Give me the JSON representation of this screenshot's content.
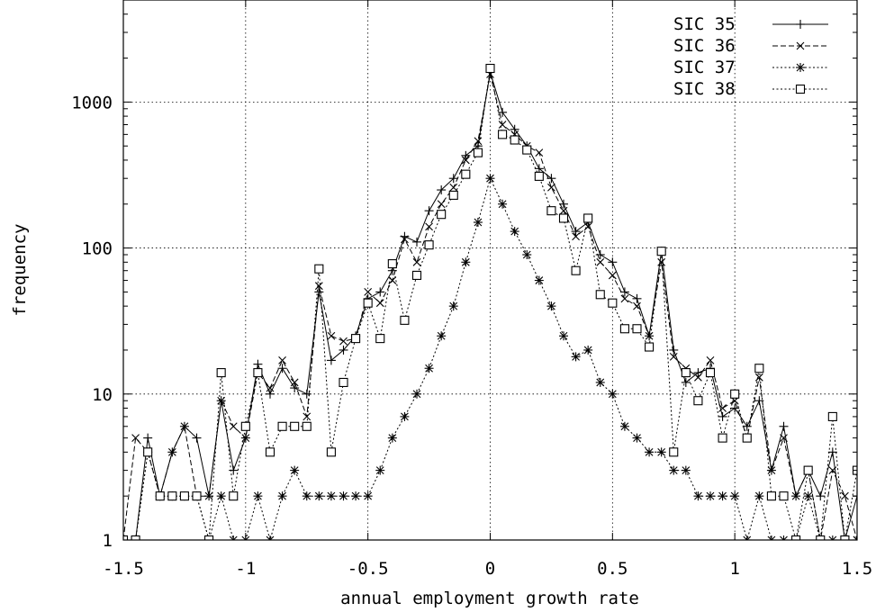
{
  "chart_data": {
    "type": "line",
    "xlabel": "annual employment growth rate",
    "ylabel": "frequency",
    "xlim": [
      -1.5,
      1.5
    ],
    "ylim": [
      1,
      5000
    ],
    "yscale": "log",
    "grid": true,
    "legend_position": "top-right",
    "xticks": [
      "-1.5",
      "-1",
      "-0.5",
      "0",
      "0.5",
      "1",
      "1.5"
    ],
    "yticks": [
      "1",
      "10",
      "100",
      "1000"
    ],
    "series": [
      {
        "name": "SIC 35",
        "color": "#000000",
        "line": "solid",
        "marker": "plus",
        "x": [
          -1.5,
          -1.45,
          -1.4,
          -1.35,
          -1.3,
          -1.25,
          -1.2,
          -1.15,
          -1.1,
          -1.05,
          -1.0,
          -0.95,
          -0.9,
          -0.85,
          -0.8,
          -0.75,
          -0.7,
          -0.65,
          -0.6,
          -0.55,
          -0.5,
          -0.45,
          -0.4,
          -0.35,
          -0.3,
          -0.25,
          -0.2,
          -0.15,
          -0.1,
          -0.05,
          0.0,
          0.05,
          0.1,
          0.15,
          0.2,
          0.25,
          0.3,
          0.35,
          0.4,
          0.45,
          0.5,
          0.55,
          0.6,
          0.65,
          0.7,
          0.75,
          0.8,
          0.85,
          0.9,
          0.95,
          1.0,
          1.05,
          1.1,
          1.15,
          1.2,
          1.25,
          1.3,
          1.35,
          1.4,
          1.45,
          1.5
        ],
        "values": [
          1,
          1,
          5,
          2,
          4,
          6,
          5,
          2,
          9,
          3,
          5,
          16,
          10,
          15,
          11,
          10,
          50,
          17,
          20,
          25,
          45,
          50,
          70,
          120,
          110,
          180,
          250,
          300,
          430,
          500,
          1600,
          850,
          650,
          500,
          350,
          300,
          200,
          130,
          150,
          90,
          80,
          50,
          45,
          25,
          95,
          20,
          12,
          14,
          15,
          7,
          8,
          6,
          9,
          3,
          6,
          2,
          3,
          2,
          4,
          1,
          2
        ]
      },
      {
        "name": "SIC 36",
        "color": "#000000",
        "line": "dashed",
        "marker": "cross",
        "x": [
          -1.5,
          -1.45,
          -1.4,
          -1.35,
          -1.3,
          -1.25,
          -1.2,
          -1.15,
          -1.1,
          -1.05,
          -1.0,
          -0.95,
          -0.9,
          -0.85,
          -0.8,
          -0.75,
          -0.7,
          -0.65,
          -0.6,
          -0.55,
          -0.5,
          -0.45,
          -0.4,
          -0.35,
          -0.3,
          -0.25,
          -0.2,
          -0.15,
          -0.1,
          -0.05,
          0.0,
          0.05,
          0.1,
          0.15,
          0.2,
          0.25,
          0.3,
          0.35,
          0.4,
          0.45,
          0.5,
          0.55,
          0.6,
          0.65,
          0.7,
          0.75,
          0.8,
          0.85,
          0.9,
          0.95,
          1.0,
          1.05,
          1.1,
          1.15,
          1.2,
          1.25,
          1.3,
          1.35,
          1.4,
          1.45,
          1.5
        ],
        "values": [
          1,
          5,
          4,
          2,
          4,
          6,
          2,
          2,
          9,
          6,
          5,
          14,
          11,
          17,
          12,
          7,
          55,
          25,
          23,
          24,
          50,
          42,
          60,
          115,
          80,
          140,
          200,
          260,
          400,
          540,
          1550,
          700,
          600,
          500,
          450,
          260,
          180,
          120,
          140,
          80,
          65,
          45,
          40,
          25,
          80,
          18,
          15,
          13,
          17,
          8,
          9,
          5,
          13,
          3,
          5,
          2,
          3,
          1,
          3,
          2,
          1
        ]
      },
      {
        "name": "SIC 37",
        "color": "#000000",
        "line": "dotted",
        "marker": "star",
        "x": [
          -1.5,
          -1.45,
          -1.4,
          -1.35,
          -1.3,
          -1.25,
          -1.2,
          -1.15,
          -1.1,
          -1.05,
          -1.0,
          -0.95,
          -0.9,
          -0.85,
          -0.8,
          -0.75,
          -0.7,
          -0.65,
          -0.6,
          -0.55,
          -0.5,
          -0.45,
          -0.4,
          -0.35,
          -0.3,
          -0.25,
          -0.2,
          -0.15,
          -0.1,
          -0.05,
          0.0,
          0.05,
          0.1,
          0.15,
          0.2,
          0.25,
          0.3,
          0.35,
          0.4,
          0.45,
          0.5,
          0.55,
          0.6,
          0.65,
          0.7,
          0.75,
          0.8,
          0.85,
          0.9,
          0.95,
          1.0,
          1.05,
          1.1,
          1.15,
          1.2,
          1.25,
          1.3,
          1.35,
          1.4,
          1.45,
          1.5
        ],
        "values": [
          1,
          1,
          4,
          2,
          2,
          2,
          2,
          1,
          2,
          1,
          1,
          2,
          1,
          2,
          3,
          2,
          2,
          2,
          2,
          2,
          2,
          3,
          5,
          7,
          10,
          15,
          25,
          40,
          80,
          150,
          300,
          200,
          130,
          90,
          60,
          40,
          25,
          18,
          20,
          12,
          10,
          6,
          5,
          4,
          4,
          3,
          3,
          2,
          2,
          2,
          2,
          1,
          2,
          1,
          1,
          1,
          2,
          1,
          1,
          1,
          1
        ]
      },
      {
        "name": "SIC 38",
        "color": "#000000",
        "line": "dotted",
        "marker": "square",
        "x": [
          -1.5,
          -1.45,
          -1.4,
          -1.35,
          -1.3,
          -1.25,
          -1.2,
          -1.15,
          -1.1,
          -1.05,
          -1.0,
          -0.95,
          -0.9,
          -0.85,
          -0.8,
          -0.75,
          -0.7,
          -0.65,
          -0.6,
          -0.55,
          -0.5,
          -0.45,
          -0.4,
          -0.35,
          -0.3,
          -0.25,
          -0.2,
          -0.15,
          -0.1,
          -0.05,
          0.0,
          0.05,
          0.1,
          0.15,
          0.2,
          0.25,
          0.3,
          0.35,
          0.4,
          0.45,
          0.5,
          0.55,
          0.6,
          0.65,
          0.7,
          0.75,
          0.8,
          0.85,
          0.9,
          0.95,
          1.0,
          1.05,
          1.1,
          1.15,
          1.2,
          1.25,
          1.3,
          1.35,
          1.4,
          1.45,
          1.5
        ],
        "values": [
          1,
          1,
          4,
          2,
          2,
          2,
          2,
          1,
          14,
          2,
          6,
          14,
          4,
          6,
          6,
          6,
          72,
          4,
          12,
          24,
          42,
          24,
          78,
          32,
          65,
          105,
          170,
          230,
          320,
          450,
          1700,
          600,
          550,
          470,
          310,
          180,
          160,
          70,
          160,
          48,
          42,
          28,
          28,
          21,
          95,
          4,
          14,
          9,
          14,
          5,
          10,
          5,
          15,
          2,
          2,
          1,
          3,
          1,
          7,
          1,
          3
        ]
      }
    ]
  }
}
